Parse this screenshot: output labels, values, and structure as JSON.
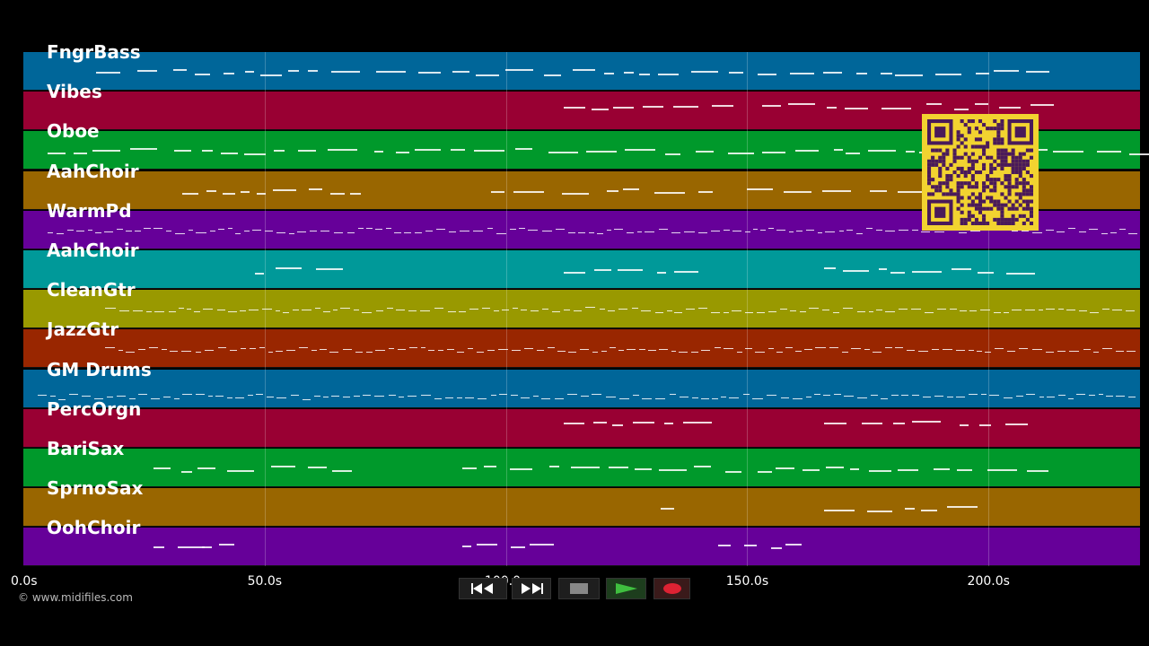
{
  "tracks": [
    {
      "name": "FngrBass",
      "color": "#006699"
    },
    {
      "name": "Vibes",
      "color": "#990033"
    },
    {
      "name": "Oboe",
      "color": "#00992b"
    },
    {
      "name": "AahChoir",
      "color": "#996600"
    },
    {
      "name": "WarmPd",
      "color": "#660099"
    },
    {
      "name": "AahChoir",
      "color": "#009999"
    },
    {
      "name": "CleanGtr",
      "color": "#999900"
    },
    {
      "name": "JazzGtr",
      "color": "#992600"
    },
    {
      "name": "GM Drums",
      "color": "#006699"
    },
    {
      "name": "PercOrgn",
      "color": "#990033"
    },
    {
      "name": "BariSax",
      "color": "#00992b"
    },
    {
      "name": "SprnoSax",
      "color": "#996600"
    },
    {
      "name": "OohChoir",
      "color": "#660099"
    }
  ],
  "time_axis": {
    "ticks": [
      "0.0s",
      "50.0s",
      "100.0s",
      "150.0s",
      "200.0s"
    ],
    "tick_seconds": [
      0,
      50,
      100,
      150,
      200
    ],
    "max_seconds": 230
  },
  "footer": {
    "copyright": "© www.midifiles.com"
  },
  "transport": {
    "rewind_icon": "rewind-icon",
    "fast_forward_icon": "fast-forward-icon",
    "stop_icon": "stop-icon",
    "play_icon": "play-icon",
    "record_icon": "record-icon",
    "colors": {
      "play": "#2a8c2a",
      "record": "#dd2233",
      "stop": "#888888"
    }
  },
  "overlay": {
    "qr_code_icon": "qr-code-icon",
    "qr_color": "#f2d330",
    "qr_dark": "#4a1a5a"
  }
}
